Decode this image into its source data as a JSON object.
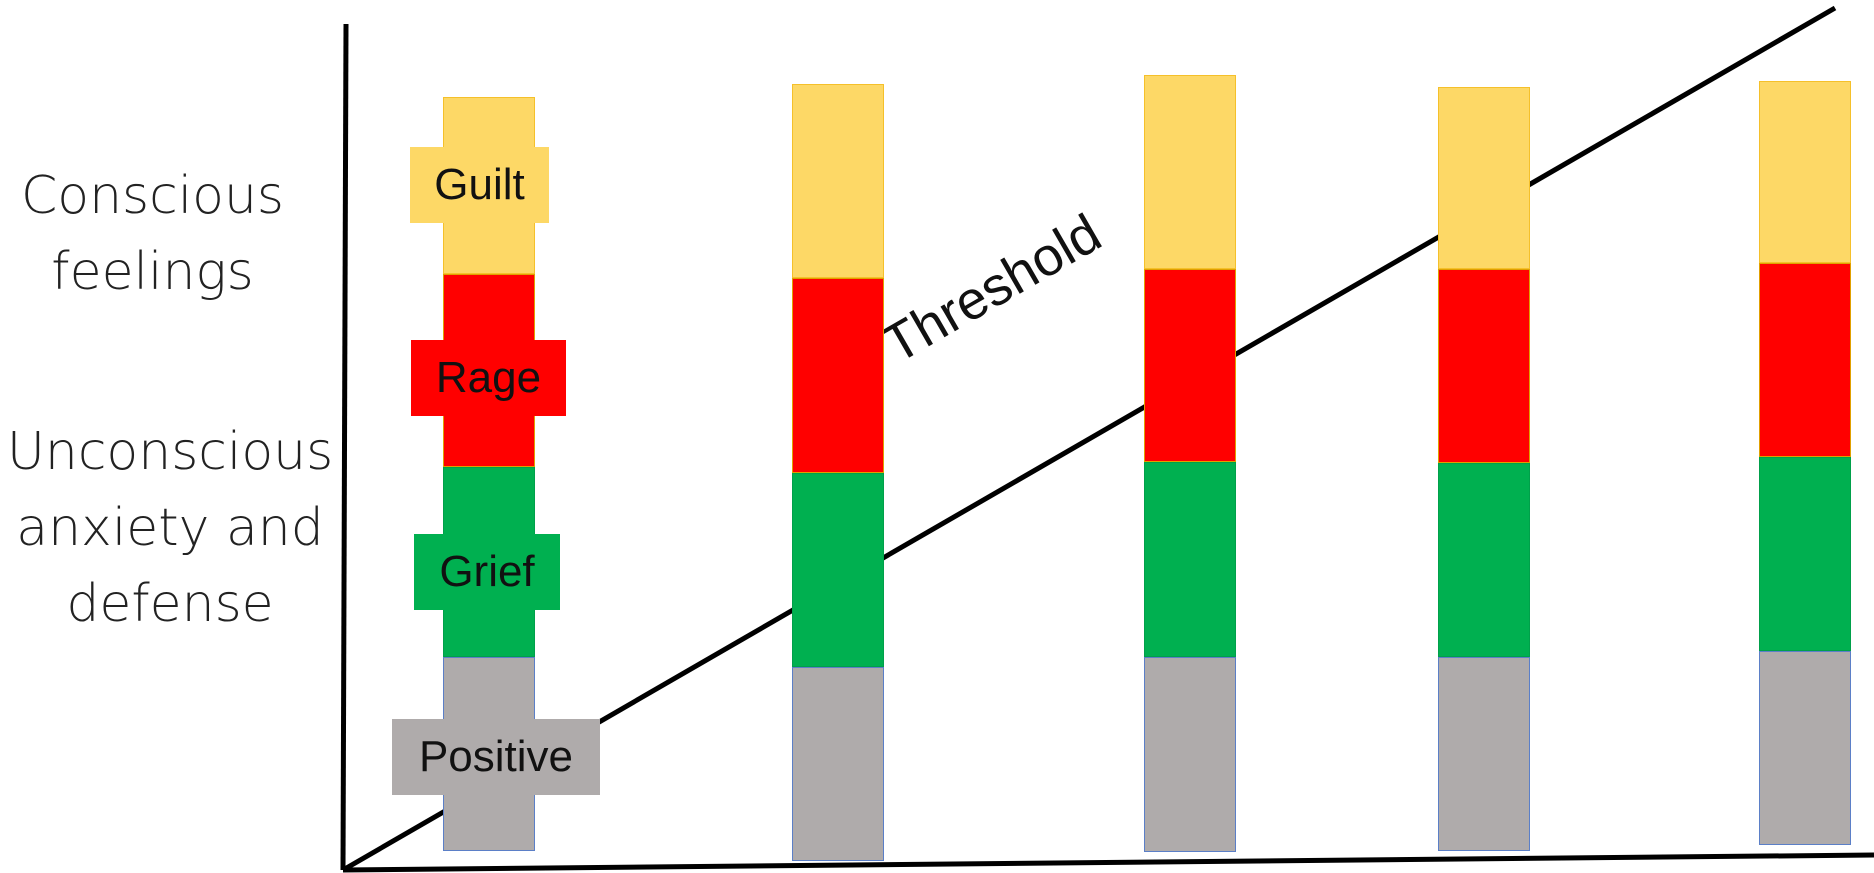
{
  "labels": {
    "conscious": "Conscious\nfeelings",
    "unconscious": "Unconscious\nanxiety and\ndefense",
    "threshold": "Threshold"
  },
  "segments": [
    {
      "key": "guilt",
      "name": "Guilt",
      "color": "#FDD866",
      "border": "#F5C02A"
    },
    {
      "key": "rage",
      "name": "Rage",
      "color": "#FF0000",
      "border": "#E0A000"
    },
    {
      "key": "grief",
      "name": "Grief",
      "color": "#00B050",
      "border": "#00A04A"
    },
    {
      "key": "positive",
      "name": "Positive",
      "color": "#AFABAB",
      "border": "#5B7FC7"
    }
  ],
  "colors": {
    "axis": "#000000",
    "line": "#000000"
  }
}
